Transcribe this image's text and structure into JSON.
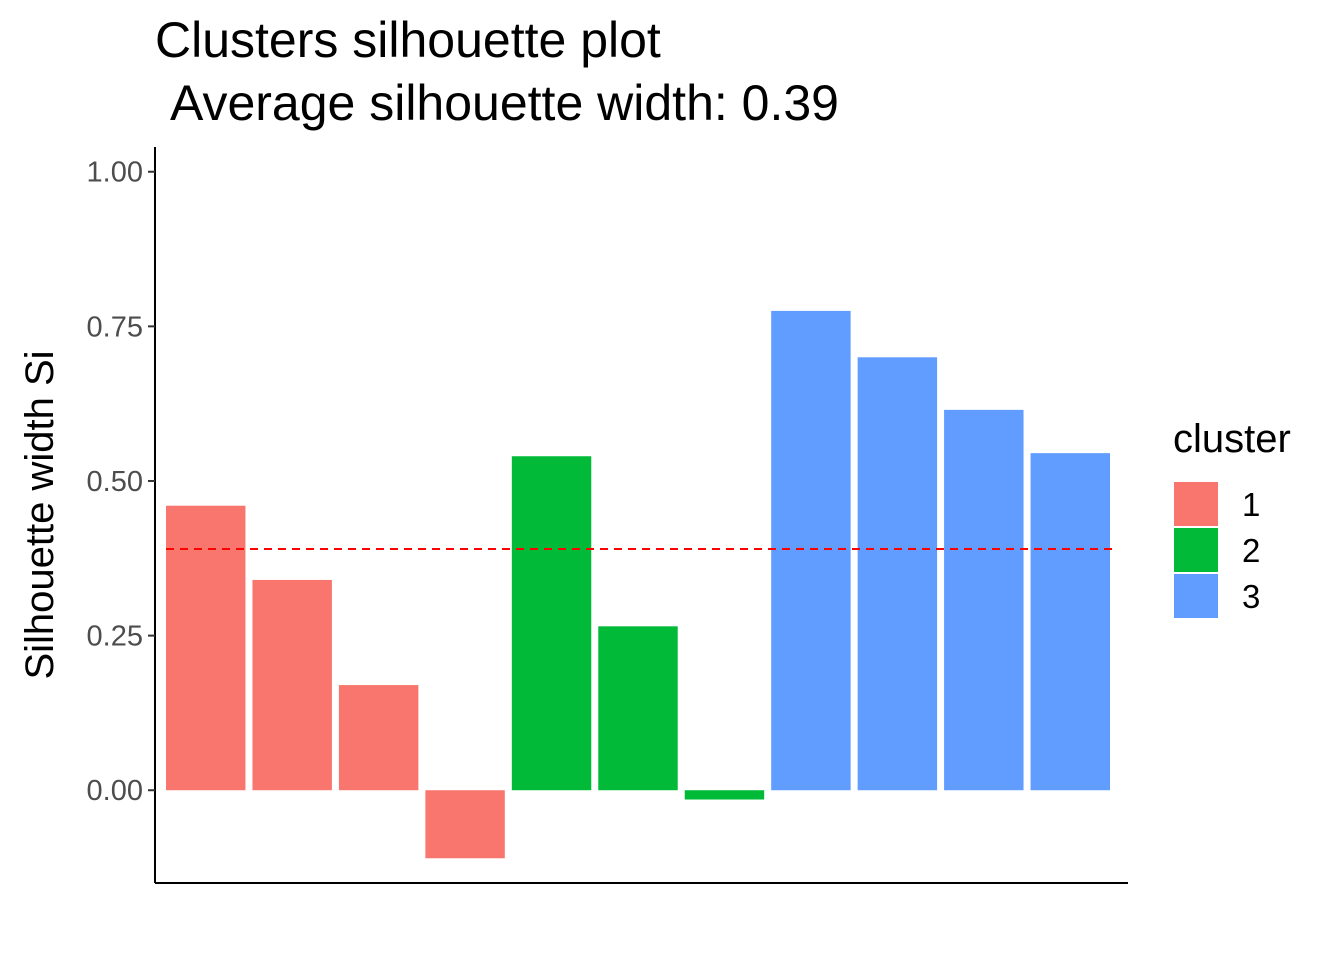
{
  "chart_data": {
    "type": "bar",
    "title": "Clusters silhouette plot",
    "subtitle": "Average silhouette width: 0.39",
    "xlabel": "",
    "ylabel": "Silhouette width Si",
    "ylim": [
      -0.15,
      1.04
    ],
    "yticks": [
      {
        "value": 0,
        "label": "0.00"
      },
      {
        "value": 0.25,
        "label": "0.25"
      },
      {
        "value": 0.5,
        "label": "0.50"
      },
      {
        "value": 0.75,
        "label": "0.75"
      },
      {
        "value": 1,
        "label": "1.00"
      }
    ],
    "grid": false,
    "reference_line": {
      "value": 0.39,
      "color": "#ff0000",
      "style": "dashed"
    },
    "legend": {
      "title": "cluster",
      "placement": "right",
      "entries": [
        {
          "label": "1",
          "color": "#F8766D"
        },
        {
          "label": "2",
          "color": "#00BA38"
        },
        {
          "label": "3",
          "color": "#619CFF"
        }
      ]
    },
    "bars": [
      {
        "cluster": "1",
        "value": 0.46
      },
      {
        "cluster": "1",
        "value": 0.34
      },
      {
        "cluster": "1",
        "value": 0.17
      },
      {
        "cluster": "1",
        "value": -0.11
      },
      {
        "cluster": "2",
        "value": 0.54
      },
      {
        "cluster": "2",
        "value": 0.265
      },
      {
        "cluster": "2",
        "value": -0.015
      },
      {
        "cluster": "3",
        "value": 0.775
      },
      {
        "cluster": "3",
        "value": 0.7
      },
      {
        "cluster": "3",
        "value": 0.615
      },
      {
        "cluster": "3",
        "value": 0.545
      }
    ]
  }
}
